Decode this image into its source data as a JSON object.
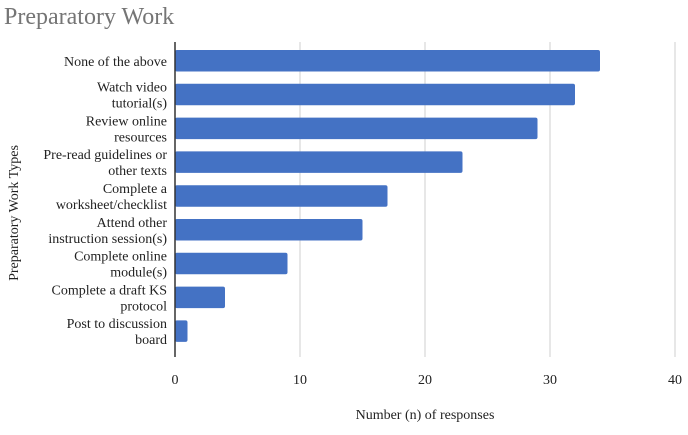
{
  "chart_data": {
    "type": "bar",
    "orientation": "horizontal",
    "title": "Preparatory Work",
    "xlabel": "Number (n) of responses",
    "ylabel": "Preparatory Work Types",
    "categories": [
      [
        "None of the above"
      ],
      [
        "Watch video",
        "tutorial(s)"
      ],
      [
        "Review online",
        "resources"
      ],
      [
        "Pre-read guidelines or",
        "other texts"
      ],
      [
        "Complete a",
        "worksheet/checklist"
      ],
      [
        "Attend other",
        "instruction session(s)"
      ],
      [
        "Complete online",
        "module(s)"
      ],
      [
        "Complete a draft KS",
        "protocol"
      ],
      [
        "Post to discussion",
        "board"
      ]
    ],
    "values": [
      34,
      32,
      29,
      23,
      17,
      15,
      9,
      4,
      1
    ],
    "xlim": [
      0,
      40
    ],
    "xticks": [
      "0",
      "10",
      "20",
      "30",
      "40"
    ],
    "grid": true,
    "legend": "none",
    "bar_color": "#4472c4"
  }
}
